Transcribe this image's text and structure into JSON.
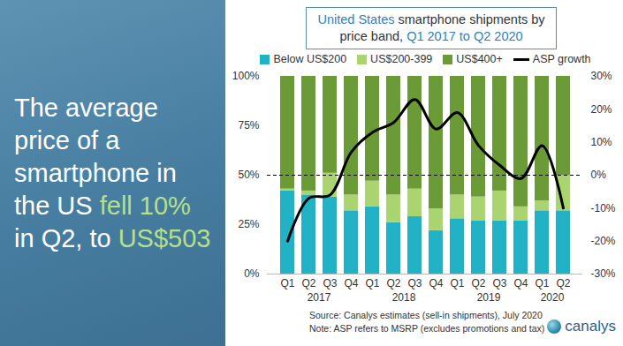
{
  "headline": [
    {
      "text": "The average price of a smartphone in the US ",
      "color": "#ffffff"
    },
    {
      "text": "fell 10%",
      "color": "#b5e08a"
    },
    {
      "text": " in Q2, to ",
      "color": "#ffffff"
    },
    {
      "text": "US$503",
      "color": "#b5e08a"
    }
  ],
  "chart_data": {
    "type": "bar",
    "stacked": true,
    "title": [
      {
        "text": "United States",
        "color": "#2f7fc1"
      },
      {
        "text": " smartphone shipments by price band, ",
        "color": "#333333"
      },
      {
        "text": "Q1 2017 to Q2 2020",
        "color": "#2f7fc1"
      }
    ],
    "categories": [
      "Q1",
      "Q2",
      "Q3",
      "Q4",
      "Q1",
      "Q2",
      "Q3",
      "Q4",
      "Q1",
      "Q2",
      "Q3",
      "Q4",
      "Q1",
      "Q2"
    ],
    "x_groups": [
      {
        "label": "2017",
        "count": 4
      },
      {
        "label": "2018",
        "count": 4
      },
      {
        "label": "2019",
        "count": 4
      },
      {
        "label": "2020",
        "count": 2
      }
    ],
    "series": [
      {
        "name": "Below US$200",
        "type": "bar",
        "color": "#22b2c6",
        "values": [
          42,
          40,
          39,
          32,
          34,
          26,
          29,
          22,
          28,
          27,
          27,
          27,
          32,
          32
        ]
      },
      {
        "name": "US$200-399",
        "type": "bar",
        "color": "#a9d46f",
        "values": [
          1,
          2,
          12,
          8,
          13,
          14,
          14,
          11,
          12,
          12,
          15,
          7,
          5,
          18
        ]
      },
      {
        "name": "US$400+",
        "type": "bar",
        "color": "#6b9b37",
        "values": [
          57,
          58,
          49,
          60,
          53,
          60,
          57,
          67,
          60,
          61,
          58,
          66,
          63,
          50
        ]
      },
      {
        "name": "ASP growth",
        "type": "line",
        "axis": "y2",
        "color": "#000000",
        "values": [
          -20,
          -7,
          -6,
          7,
          13,
          16,
          23,
          14,
          19,
          9,
          3,
          -1,
          9,
          -10
        ]
      }
    ],
    "ylim": [
      0,
      100
    ],
    "yticks": [
      {
        "value": 0,
        "label": "0%"
      },
      {
        "value": 25,
        "label": "25%"
      },
      {
        "value": 50,
        "label": "50%"
      },
      {
        "value": 75,
        "label": "75%"
      },
      {
        "value": 100,
        "label": "100%"
      }
    ],
    "y2lim": [
      -30,
      30
    ],
    "y2ticks": [
      {
        "value": -30,
        "label": "-30%"
      },
      {
        "value": -20,
        "label": "-20%"
      },
      {
        "value": -10,
        "label": "-10%"
      },
      {
        "value": 0,
        "label": "0%"
      },
      {
        "value": 10,
        "label": "10%"
      },
      {
        "value": 20,
        "label": "20%"
      },
      {
        "value": 30,
        "label": "30%"
      }
    ],
    "grid": false,
    "source": "Source: Canalys estimates (sell-in shipments), July 2020",
    "note": "Note: ASP refers to MSRP (excludes promotions and tax)",
    "logo": "canalys"
  }
}
